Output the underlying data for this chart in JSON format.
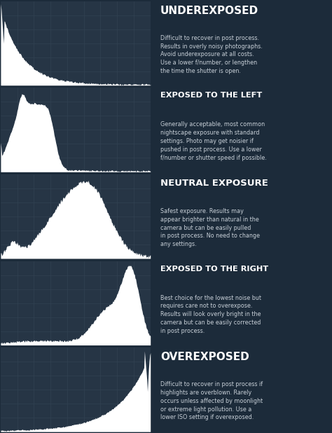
{
  "bg_color": "#1c2b3a",
  "panel_bg": "#263545",
  "grid_color": "#344455",
  "hist_color": "#ffffff",
  "title_color": "#ffffff",
  "body_color": "#c8d0d8",
  "separator_color": "#111e2a",
  "fig_width": 4.74,
  "fig_height": 6.18,
  "dpi": 100,
  "rows": [
    {
      "title": "UNDEREXPOSED",
      "body": "Difficult to recover in post process.\nResults in overly noisy photographs.\nAvoid underexposure at all costs.\nUse a lower f/number, or lengthen\nthe time the shutter is open.",
      "hist_type": "underexposed"
    },
    {
      "title": "EXPOSED TO THE LEFT",
      "body": "Generally acceptable, most common\nnightscape exposure with standard\nsettings. Photo may get noisier if\npushed in post process. Use a lower\nf/number or shutter speed if possible.",
      "hist_type": "left"
    },
    {
      "title": "NEUTRAL EXPOSURE",
      "body": "Safest exposure. Results may\nappear brighter than natural in the\ncamera but can be easily pulled\nin post process. No need to change\nany settings.",
      "hist_type": "neutral"
    },
    {
      "title": "EXPOSED TO THE RIGHT",
      "body": "Best choice for the lowest noise but\nrequires care not to overexpose.\nResults will look overly bright in the\ncamera but can be easily corrected\nin post process.",
      "hist_type": "right"
    },
    {
      "title": "OVEREXPOSED",
      "body": "Difficult to recover in post process if\nhighlights are overblown. Rarely\noccurs unless affected by moonlight\nor extreme light pollution. Use a\nlower ISO setting if overexposed.",
      "hist_type": "overexposed"
    }
  ]
}
